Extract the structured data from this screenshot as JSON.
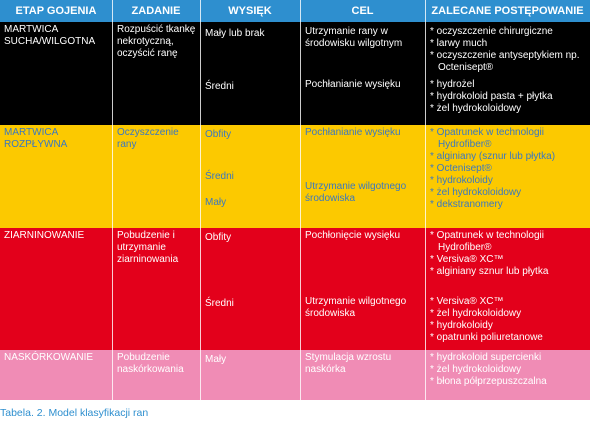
{
  "table": {
    "header": [
      "ETAP GOJENIA",
      "ZADANIE",
      "WYSIĘK",
      "CEL",
      "ZALECANE POSTĘPOWANIE"
    ],
    "rows": [
      {
        "stage": "MARTWICA SUCHA/WILGOTNA",
        "task": "Rozpuścić tkankę nekrotyczną, oczyścić ranę",
        "blocks": [
          {
            "exudate": "Mały lub brak",
            "goal": "Utrzymanie rany w środowisku wilgotnym",
            "recommendations": [
              "* oczyszczenie chirurgiczne",
              "* larwy much",
              "* oczyszczenie antyseptykiem np. Octenisept®"
            ]
          },
          {
            "exudate": "Średni",
            "goal": "Pochłanianie wysięku",
            "recommendations": [
              "* hydrożel",
              "* hydrokoloid pasta + płytka",
              "* żel hydrokoloidowy"
            ]
          }
        ]
      },
      {
        "stage": "MARTWICA ROZPŁYWNA",
        "task": "Oczyszczenie rany",
        "blocks": [
          {
            "exudate": "Obfity",
            "goal": "Pochłanianie wysięku",
            "recommendations": [
              "* Opatrunek w technologii Hydrofiber®",
              "* alginiany (sznur lub płytka)",
              "* Octenisept®",
              "* hydrokoloidy",
              "* żel hydrokoloidowy",
              "* dekstranomery"
            ]
          },
          {
            "exudate": "Średni",
            "goal": "Utrzymanie wilgotnego środowiska"
          },
          {
            "exudate": "Mały"
          }
        ]
      },
      {
        "stage": "ZIARNINOWANIE",
        "task": "Pobudzenie i utrzymanie ziarninowania",
        "blocks": [
          {
            "exudate": "Obfity",
            "goal": "Pochłonięcie wysięku",
            "recommendations": [
              "* Opatrunek w technologii Hydrofiber®",
              "* Versiva® XC™",
              "* alginiany sznur lub płytka"
            ]
          },
          {
            "exudate": "Średni",
            "goal": "Utrzymanie wilgotnego środowiska",
            "recommendations": [
              "* Versiva® XC™",
              "* żel hydrokoloidowy",
              "* hydrokoloidy",
              "* opatrunki poliuretanowe"
            ]
          }
        ]
      },
      {
        "stage": "NASKÓRKOWANIE",
        "task": "Pobudzenie naskórkowania",
        "blocks": [
          {
            "exudate": "Mały",
            "goal": "Stymulacja wzrostu naskórka",
            "recommendations": [
              "* hydrokoloid supercienki",
              "* żel hydrokoloidowy",
              "* błona półprzepuszczalna"
            ]
          }
        ]
      }
    ]
  },
  "caption": "Tabela. 2. Model klasyfikacji ran"
}
